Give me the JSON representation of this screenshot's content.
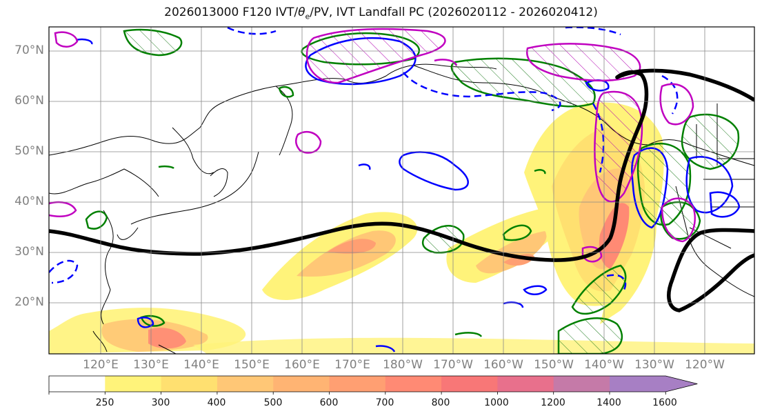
{
  "title": {
    "prefix": "2026013000 F120 IVT/",
    "theta": "θ",
    "sub": "e",
    "suffix": "/PV, IVT Landfall PC (2026020112 - 2026020412)"
  },
  "lat_labels": [
    "70°N",
    "60°N",
    "50°N",
    "40°N",
    "30°N",
    "20°N"
  ],
  "lon_labels": [
    "120°E",
    "130°E",
    "140°E",
    "150°E",
    "160°E",
    "170°E",
    "180°W",
    "170°W",
    "160°W",
    "150°W",
    "140°W",
    "130°W",
    "120°W"
  ],
  "colorbar": {
    "ticks": [
      "250",
      "300",
      "400",
      "500",
      "600",
      "700",
      "800",
      "1000",
      "1200",
      "1400",
      "1600"
    ],
    "colors": [
      "#ffffff",
      "#fff37a",
      "#ffe070",
      "#ffc776",
      "#ffb473",
      "#ff9f72",
      "#ff8a74",
      "#f87777",
      "#e8708c",
      "#c57aa8",
      "#a77fc4"
    ]
  },
  "legend_colors": {
    "pv_contour": "#008000",
    "theta_contour": "#0000ff",
    "ivt_pc_contour": "#c000c0",
    "jet_line": "#000000",
    "coastline": "#000000"
  }
}
